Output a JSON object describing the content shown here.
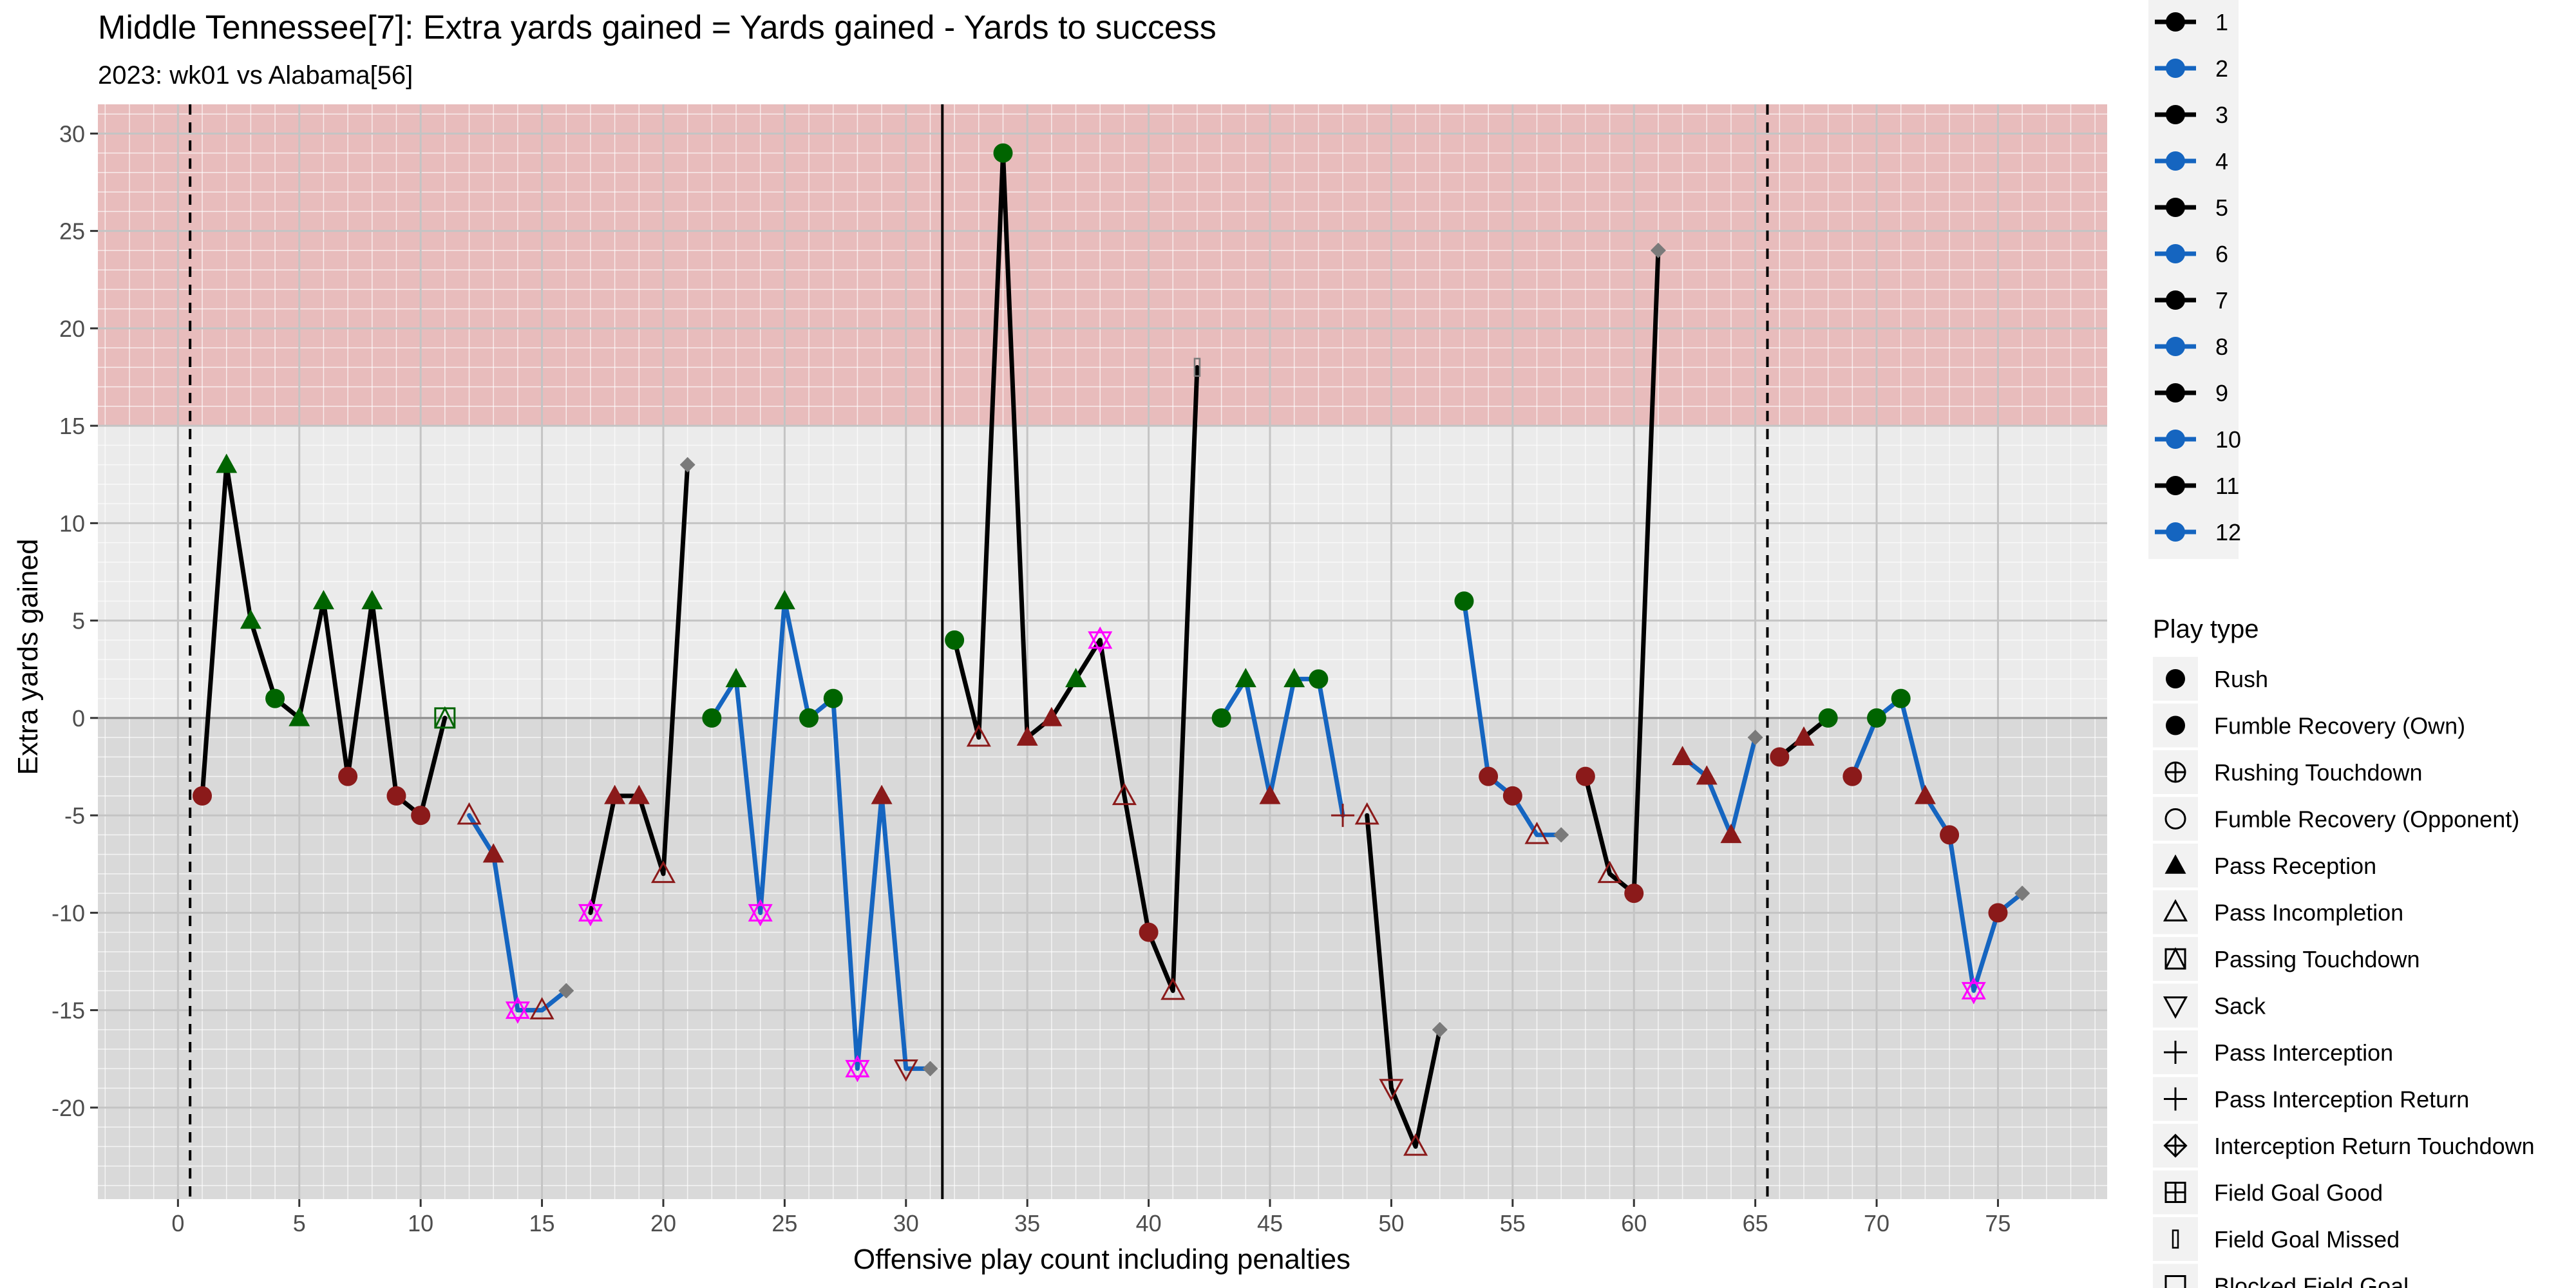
{
  "chart_data": {
    "type": "line",
    "title": "Middle Tennessee[7]: Extra yards gained = Yards gained - Yards to success",
    "subtitle": "2023: wk01 vs Alabama[56]",
    "xlabel": "Offensive play count including penalties",
    "ylabel": "Extra yards gained",
    "xlim": [
      -3.3,
      79.5
    ],
    "ylim": [
      -24.7,
      31.5
    ],
    "x_ticks": [
      0,
      5,
      10,
      15,
      20,
      25,
      30,
      35,
      40,
      45,
      50,
      55,
      60,
      65,
      70,
      75
    ],
    "y_ticks": [
      -20,
      -15,
      -10,
      -5,
      0,
      5,
      10,
      15,
      20,
      25,
      30
    ],
    "shaded_band": {
      "y_from": 15,
      "y_to": 31.5,
      "color": "#e8bcbc"
    },
    "zero_line": 0,
    "vlines": [
      {
        "x": 0.5,
        "style": "dashed"
      },
      {
        "x": 31.5,
        "style": "solid"
      },
      {
        "x": 65.5,
        "style": "dashed"
      }
    ],
    "colors": {
      "odd_drive": "#000000",
      "even_drive": "#1565c0",
      "success": "#006400",
      "failure": "#8b1a1a",
      "sack": "#ff00ff",
      "end_of_drive": "#7a7a7a",
      "panel": "#ebebeb",
      "panel_below_zero": "#d9d9d9"
    },
    "drives": [
      {
        "name": "1",
        "points": [
          {
            "x": 1,
            "y": -4,
            "shape": "circle",
            "fill": "failure"
          },
          {
            "x": 2,
            "y": 13,
            "shape": "triangle",
            "fill": "success"
          },
          {
            "x": 3,
            "y": 5,
            "shape": "triangle",
            "fill": "success"
          },
          {
            "x": 4,
            "y": 1,
            "shape": "circle",
            "fill": "success"
          },
          {
            "x": 5,
            "y": 0,
            "shape": "triangle",
            "fill": "success"
          },
          {
            "x": 6,
            "y": 6,
            "shape": "triangle",
            "fill": "success"
          },
          {
            "x": 7,
            "y": -3,
            "shape": "circle",
            "fill": "failure"
          },
          {
            "x": 8,
            "y": 6,
            "shape": "triangle",
            "fill": "success"
          },
          {
            "x": 9,
            "y": -4,
            "shape": "circle",
            "fill": "failure"
          },
          {
            "x": 10,
            "y": -5,
            "shape": "circle",
            "fill": "failure"
          },
          {
            "x": 11,
            "y": 0,
            "shape": "square-x",
            "fill": "success"
          }
        ]
      },
      {
        "name": "2",
        "points": [
          {
            "x": 12,
            "y": -5,
            "shape": "tri-open",
            "fill": "failure"
          },
          {
            "x": 13,
            "y": -7,
            "shape": "triangle",
            "fill": "failure"
          },
          {
            "x": 14,
            "y": -15,
            "shape": "sack",
            "fill": "sack"
          },
          {
            "x": 15,
            "y": -15,
            "shape": "tri-open",
            "fill": "failure"
          },
          {
            "x": 16,
            "y": -14,
            "shape": "diamond",
            "fill": "end_of_drive"
          }
        ]
      },
      {
        "name": "3",
        "points": [
          {
            "x": 17,
            "y": -10,
            "shape": "sack",
            "fill": "sack"
          },
          {
            "x": 18,
            "y": -4,
            "shape": "triangle",
            "fill": "failure"
          },
          {
            "x": 19,
            "y": -4,
            "shape": "triangle",
            "fill": "failure"
          },
          {
            "x": 20,
            "y": -8,
            "shape": "tri-open",
            "fill": "failure"
          },
          {
            "x": 21,
            "y": 13,
            "shape": "diamond",
            "fill": "end_of_drive"
          }
        ]
      },
      {
        "name": "4",
        "points": [
          {
            "x": 22,
            "y": 0,
            "shape": "circle",
            "fill": "success"
          },
          {
            "x": 23,
            "y": 2,
            "shape": "triangle",
            "fill": "success"
          },
          {
            "x": 24,
            "y": -10,
            "shape": "sack",
            "fill": "sack"
          },
          {
            "x": 25,
            "y": 6,
            "shape": "triangle",
            "fill": "success"
          },
          {
            "x": 26,
            "y": 0,
            "shape": "circle",
            "fill": "success"
          },
          {
            "x": 27,
            "y": 1,
            "shape": "circle",
            "fill": "success"
          },
          {
            "x": 28,
            "y": -18,
            "shape": "sack",
            "fill": "sack"
          },
          {
            "x": 29,
            "y": -4,
            "shape": "triangle",
            "fill": "failure"
          },
          {
            "x": 30,
            "y": -18,
            "shape": "tri-down-open",
            "fill": "failure"
          },
          {
            "x": 31,
            "y": -18,
            "shape": "diamond",
            "fill": "end_of_drive"
          }
        ]
      },
      {
        "name": "5",
        "points": [
          {
            "x": 32,
            "y": 4,
            "shape": "circle",
            "fill": "success"
          },
          {
            "x": 33,
            "y": -1,
            "shape": "tri-open",
            "fill": "failure"
          },
          {
            "x": 34,
            "y": 29,
            "shape": "circle",
            "fill": "success"
          },
          {
            "x": 35,
            "y": -1,
            "shape": "triangle",
            "fill": "failure"
          },
          {
            "x": 36,
            "y": 0,
            "shape": "triangle",
            "fill": "failure"
          },
          {
            "x": 37,
            "y": 2,
            "shape": "triangle",
            "fill": "success"
          },
          {
            "x": 38,
            "y": 4,
            "shape": "sack",
            "fill": "sack"
          },
          {
            "x": 39,
            "y": -4,
            "shape": "tri-open",
            "fill": "failure"
          },
          {
            "x": 40,
            "y": -11,
            "shape": "circle",
            "fill": "failure"
          },
          {
            "x": 41,
            "y": -14,
            "shape": "tri-open",
            "fill": "failure"
          },
          {
            "x": 42,
            "y": 18,
            "shape": "bar",
            "fill": "end_of_drive"
          }
        ]
      },
      {
        "name": "6",
        "points": [
          {
            "x": 43,
            "y": 0,
            "shape": "circle",
            "fill": "success"
          },
          {
            "x": 44,
            "y": 2,
            "shape": "triangle",
            "fill": "success"
          },
          {
            "x": 45,
            "y": -4,
            "shape": "triangle",
            "fill": "failure"
          },
          {
            "x": 46,
            "y": 2,
            "shape": "triangle",
            "fill": "success"
          },
          {
            "x": 47,
            "y": 2,
            "shape": "circle",
            "fill": "success"
          },
          {
            "x": 48,
            "y": -5,
            "shape": "plus",
            "fill": "failure"
          }
        ]
      },
      {
        "name": "7",
        "points": [
          {
            "x": 49,
            "y": -5,
            "shape": "tri-open",
            "fill": "failure"
          },
          {
            "x": 50,
            "y": -19,
            "shape": "tri-down-open",
            "fill": "failure"
          },
          {
            "x": 51,
            "y": -22,
            "shape": "tri-open",
            "fill": "failure"
          },
          {
            "x": 52,
            "y": -16,
            "shape": "diamond",
            "fill": "end_of_drive"
          }
        ]
      },
      {
        "name": "8",
        "points": [
          {
            "x": 53,
            "y": 6,
            "shape": "circle",
            "fill": "success"
          },
          {
            "x": 54,
            "y": -3,
            "shape": "circle",
            "fill": "failure"
          },
          {
            "x": 55,
            "y": -4,
            "shape": "circle",
            "fill": "failure"
          },
          {
            "x": 56,
            "y": -6,
            "shape": "tri-open",
            "fill": "failure"
          },
          {
            "x": 57,
            "y": -6,
            "shape": "diamond",
            "fill": "end_of_drive"
          }
        ]
      },
      {
        "name": "9",
        "points": [
          {
            "x": 58,
            "y": -3,
            "shape": "circle",
            "fill": "failure"
          },
          {
            "x": 59,
            "y": -8,
            "shape": "tri-open",
            "fill": "failure"
          },
          {
            "x": 60,
            "y": -9,
            "shape": "circle",
            "fill": "failure"
          },
          {
            "x": 61,
            "y": 24,
            "shape": "diamond",
            "fill": "end_of_drive"
          }
        ]
      },
      {
        "name": "10",
        "points": [
          {
            "x": 62,
            "y": -2,
            "shape": "triangle",
            "fill": "failure"
          },
          {
            "x": 63,
            "y": -3,
            "shape": "triangle",
            "fill": "failure"
          },
          {
            "x": 64,
            "y": -6,
            "shape": "triangle",
            "fill": "failure"
          },
          {
            "x": 65,
            "y": -1,
            "shape": "diamond",
            "fill": "end_of_drive"
          }
        ]
      },
      {
        "name": "11",
        "points": [
          {
            "x": 66,
            "y": -2,
            "shape": "circle",
            "fill": "failure"
          },
          {
            "x": 67,
            "y": -1,
            "shape": "triangle",
            "fill": "failure"
          },
          {
            "x": 68,
            "y": 0,
            "shape": "circle",
            "fill": "success"
          }
        ]
      },
      {
        "name": "12",
        "points": [
          {
            "x": 69,
            "y": -3,
            "shape": "circle",
            "fill": "failure"
          },
          {
            "x": 70,
            "y": 0,
            "shape": "circle",
            "fill": "success"
          },
          {
            "x": 71,
            "y": 1,
            "shape": "circle",
            "fill": "success"
          },
          {
            "x": 72,
            "y": -4,
            "shape": "triangle",
            "fill": "failure"
          },
          {
            "x": 73,
            "y": -6,
            "shape": "circle",
            "fill": "failure"
          },
          {
            "x": 74,
            "y": -14,
            "shape": "sack",
            "fill": "sack"
          },
          {
            "x": 75,
            "y": -10,
            "shape": "circle",
            "fill": "failure"
          },
          {
            "x": 76,
            "y": -9,
            "shape": "diamond",
            "fill": "end_of_drive"
          }
        ]
      }
    ],
    "legend_drives": [
      "1",
      "2",
      "3",
      "4",
      "5",
      "6",
      "7",
      "8",
      "9",
      "10",
      "11",
      "12"
    ],
    "legend_play_type_title": "Play type",
    "legend_play_types": [
      {
        "label": "Rush",
        "shape": "circle"
      },
      {
        "label": "Fumble Recovery (Own)",
        "shape": "circle"
      },
      {
        "label": "Rushing Touchdown",
        "shape": "circle-plus"
      },
      {
        "label": "Fumble Recovery (Opponent)",
        "shape": "circle-open"
      },
      {
        "label": "Pass Reception",
        "shape": "triangle"
      },
      {
        "label": "Pass Incompletion",
        "shape": "tri-open"
      },
      {
        "label": "Passing Touchdown",
        "shape": "square-x"
      },
      {
        "label": "Sack",
        "shape": "tri-down-open"
      },
      {
        "label": "Pass Interception",
        "shape": "plus"
      },
      {
        "label": "Pass Interception Return",
        "shape": "plus"
      },
      {
        "label": "Interception Return Touchdown",
        "shape": "diamond-plus"
      },
      {
        "label": "Field Goal Good",
        "shape": "square-plus"
      },
      {
        "label": "Field Goal Missed",
        "shape": "bar"
      },
      {
        "label": "Blocked Field Goal",
        "shape": "square-open"
      }
    ]
  }
}
